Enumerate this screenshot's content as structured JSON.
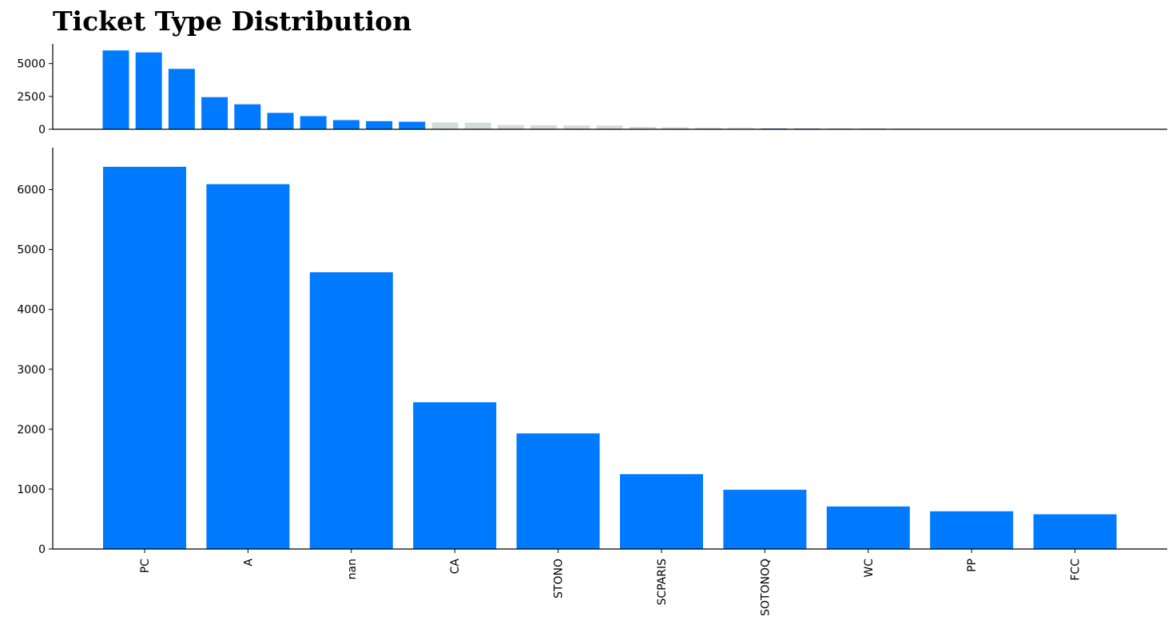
{
  "chart_data": [
    {
      "type": "bar",
      "panel": "overview",
      "title": "Ticket Type Distribution",
      "values": [
        6000,
        5850,
        4600,
        2450,
        1900,
        1250,
        1000,
        700,
        620,
        580,
        520,
        500,
        330,
        310,
        300,
        290,
        180,
        150,
        120,
        110,
        55,
        50,
        45,
        40,
        35,
        30,
        0,
        0,
        0,
        0,
        0,
        0
      ],
      "bar_colors": [
        "#007bff",
        "#007bff",
        "#007bff",
        "#007bff",
        "#007bff",
        "#007bff",
        "#007bff",
        "#007bff",
        "#007bff",
        "#007bff",
        "#d3dcdc",
        "#d3dcdc",
        "#d3dcdc",
        "#d3dcdc",
        "#d3dcdc",
        "#d3dcdc",
        "#d3dcdc",
        "#d3dcdc",
        "#d3dcdc",
        "#d3dcdc",
        "#0d47a1",
        "#0d47a1",
        "#0d47a1",
        "#0d47a1",
        "#0d47a1",
        "#0d47a1",
        "#0d47a1",
        "#0d47a1",
        "#0d47a1",
        "#0d47a1",
        "#0d47a1",
        "#0d47a1"
      ],
      "yticks": [
        0,
        2500,
        5000
      ],
      "ylim": [
        0,
        6500
      ],
      "grid": false
    },
    {
      "type": "bar",
      "panel": "top10",
      "categories": [
        "PC",
        "A",
        "nan",
        "CA",
        "STONO",
        "SCPARIS",
        "SOTONOQ",
        "WC",
        "PP",
        "FCC"
      ],
      "values": [
        6380,
        6090,
        4620,
        2450,
        1930,
        1250,
        990,
        710,
        630,
        580
      ],
      "color": "#007bff",
      "yticks": [
        0,
        1000,
        2000,
        3000,
        4000,
        5000,
        6000
      ],
      "ylim": [
        0,
        6700
      ],
      "grid": false
    }
  ]
}
